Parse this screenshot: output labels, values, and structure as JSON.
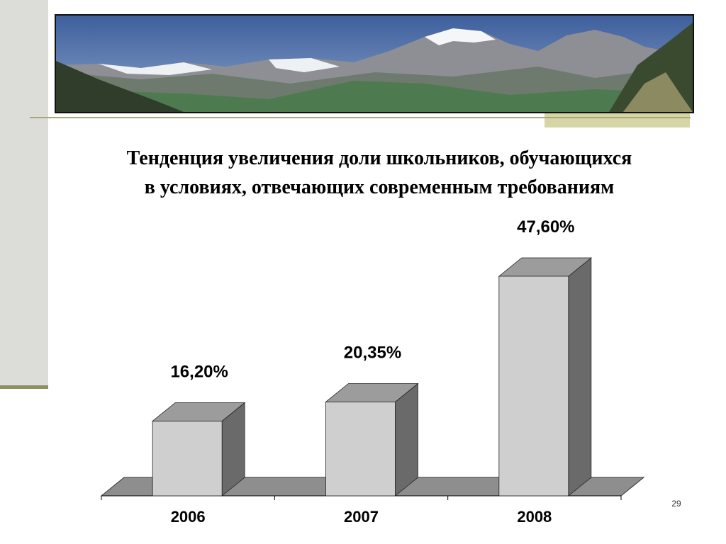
{
  "slide": {
    "title_line1": "Тенденция увеличения доли школьников, обучающихся",
    "title_line2": "в условиях, отвечающих современным требованиям",
    "page_number": "29"
  },
  "colors": {
    "bar_front": "#cfcfcf",
    "bar_top": "#9c9c9c",
    "bar_side": "#6a6a6a",
    "floor": "#8e8e8e"
  },
  "chart_data": {
    "type": "bar",
    "categories": [
      "2006",
      "2007",
      "2008"
    ],
    "values": [
      16.2,
      20.35,
      47.6
    ],
    "labels": [
      "16,20%",
      "20,35%",
      "47,60%"
    ],
    "title": "",
    "xlabel": "",
    "ylabel": "",
    "ylim": [
      0,
      50
    ],
    "grid": false,
    "three_d": true
  }
}
